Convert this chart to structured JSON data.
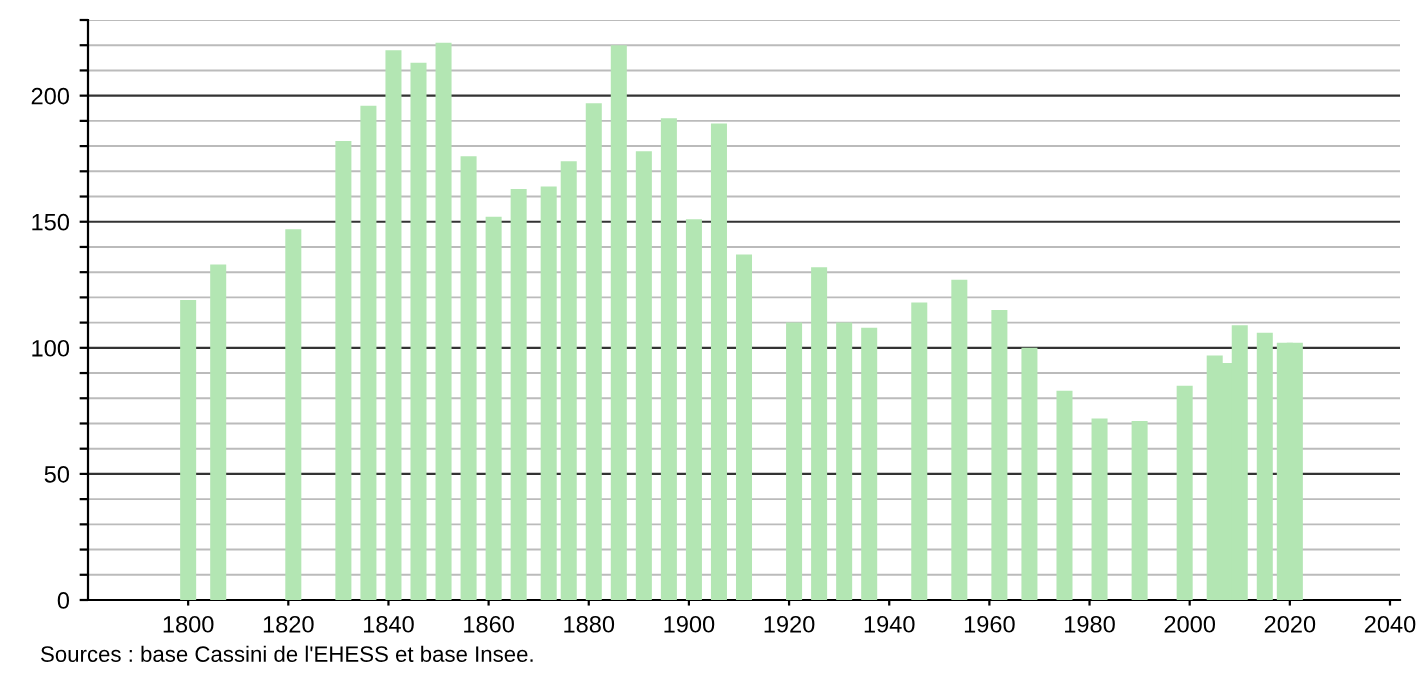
{
  "chart_data": {
    "type": "bar",
    "x": [
      1800,
      1806,
      1821,
      1831,
      1836,
      1841,
      1846,
      1851,
      1856,
      1861,
      1866,
      1872,
      1876,
      1881,
      1886,
      1891,
      1896,
      1901,
      1906,
      1911,
      1921,
      1926,
      1931,
      1936,
      1946,
      1954,
      1962,
      1968,
      1975,
      1982,
      1990,
      1999,
      2005,
      2007,
      2010,
      2015,
      2019,
      2021
    ],
    "values": [
      119,
      133,
      147,
      182,
      196,
      218,
      213,
      221,
      176,
      152,
      163,
      164,
      174,
      197,
      220,
      178,
      191,
      151,
      189,
      137,
      110,
      132,
      110,
      108,
      118,
      127,
      115,
      100,
      83,
      72,
      71,
      85,
      97,
      94,
      109,
      106,
      102,
      102
    ],
    "color": "#b3e6b3",
    "xlim": [
      1780,
      2042
    ],
    "xticks": [
      1800,
      1820,
      1840,
      1860,
      1880,
      1900,
      1920,
      1940,
      1960,
      1980,
      2000,
      2020,
      2040
    ],
    "ylim": [
      0,
      230
    ],
    "yticks": [
      0,
      {
        "value": 10,
        "label": null
      },
      {
        "value": 20,
        "label": null
      },
      {
        "value": 30,
        "label": null
      },
      {
        "value": 40,
        "label": null
      },
      50,
      {
        "value": 60,
        "label": null
      },
      {
        "value": 70,
        "label": null
      },
      {
        "value": 80,
        "label": null
      },
      {
        "value": 90,
        "label": null
      },
      100,
      {
        "value": 110,
        "label": null
      },
      {
        "value": 120,
        "label": null
      },
      {
        "value": 130,
        "label": null
      },
      {
        "value": 140,
        "label": null
      },
      150,
      {
        "value": 160,
        "label": null
      },
      {
        "value": 170,
        "label": null
      },
      {
        "value": 180,
        "label": null
      },
      {
        "value": 190,
        "label": null
      },
      200,
      {
        "value": 210,
        "label": null
      },
      {
        "value": 220,
        "label": null
      },
      {
        "value": 230,
        "label": null
      }
    ],
    "grid": "y",
    "annotations": [
      "Sources : base Cassini de l'EHESS et base Insee."
    ]
  }
}
